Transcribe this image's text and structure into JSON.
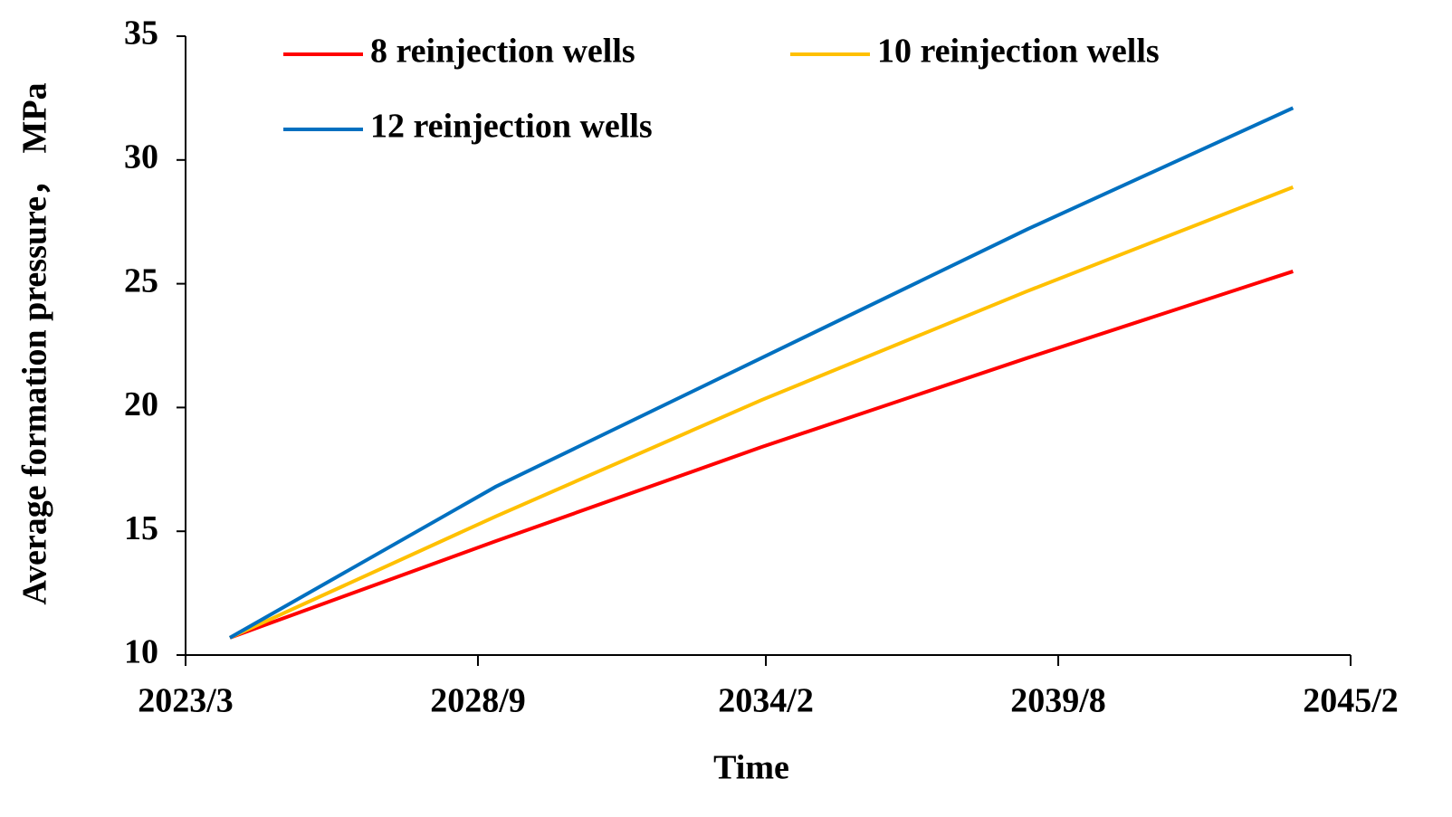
{
  "chart_data": {
    "type": "line",
    "x_label": "Time",
    "y_label": "Average formation pressure，  MPa",
    "x": [
      "2024/1",
      "2029/1",
      "2034/1",
      "2039/1",
      "2044/1"
    ],
    "xlim": [
      "2023/3",
      "2045/2"
    ],
    "xticks": [
      "2023/3",
      "2028/9",
      "2034/2",
      "2039/8",
      "2045/2"
    ],
    "ylim": [
      10,
      35
    ],
    "yticks": [
      10,
      15,
      20,
      25,
      30,
      35
    ],
    "grid": false,
    "legend": "top",
    "series": [
      {
        "name": "8 reinjection wells",
        "color": "#ff0000",
        "values": [
          10.7,
          14.6,
          18.4,
          22.0,
          25.5
        ]
      },
      {
        "name": "10 reinjection wells",
        "color": "#ffc000",
        "values": [
          10.7,
          15.6,
          20.3,
          24.7,
          28.9
        ]
      },
      {
        "name": "12 reinjection wells",
        "color": "#0070c0",
        "values": [
          10.7,
          16.8,
          22.0,
          27.2,
          32.1
        ]
      }
    ]
  }
}
